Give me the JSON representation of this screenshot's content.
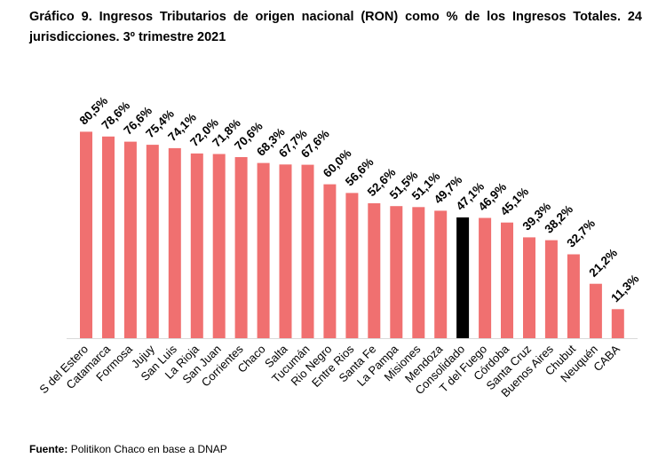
{
  "header": {
    "title": "Gráfico 9. Ingresos Tributarios de origen nacional (RON) como % de los Ingresos Totales. 24 jurisdicciones. 3º trimestre 2021"
  },
  "footer": {
    "source_label": "Fuente:",
    "source_text": "Politikon Chaco en base a DNAP"
  },
  "colors": {
    "bar": "#f07070",
    "highlight": "#000000",
    "axis": "#d9d9d9"
  },
  "chart_data": {
    "type": "bar",
    "title": "Gráfico 9. Ingresos Tributarios de origen nacional (RON) como % de los Ingresos Totales. 24 jurisdicciones. 3º trimestre 2021",
    "categories": [
      "S del Estero",
      "Catamarca",
      "Formosa",
      "Jujuy",
      "San Luis",
      "La Rioja",
      "San Juan",
      "Corrientes",
      "Chaco",
      "Salta",
      "Tucumán",
      "Rio Negro",
      "Entre Rios",
      "Santa Fe",
      "La Pampa",
      "Misiones",
      "Mendoza",
      "Consolidado",
      "T del Fuego",
      "Córdoba",
      "Santa Cruz",
      "Buenos Aires",
      "Chubut",
      "Neuquén",
      "CABA"
    ],
    "values": [
      80.5,
      78.6,
      76.6,
      75.4,
      74.1,
      72.0,
      71.8,
      70.6,
      68.3,
      67.7,
      67.6,
      60.0,
      56.6,
      52.6,
      51.5,
      51.1,
      49.7,
      47.1,
      46.9,
      45.1,
      39.3,
      38.2,
      32.7,
      21.2,
      11.3
    ],
    "labels": [
      "80,5%",
      "78,6%",
      "76,6%",
      "75,4%",
      "74,1%",
      "72,0%",
      "71,8%",
      "70,6%",
      "68,3%",
      "67,7%",
      "67,6%",
      "60,0%",
      "56,6%",
      "52,6%",
      "51,5%",
      "51,1%",
      "49,7%",
      "47,1%",
      "46,9%",
      "45,1%",
      "39,3%",
      "38,2%",
      "32,7%",
      "21,2%",
      "11,3%"
    ],
    "highlight_category": "Consolidado",
    "xlabel": "",
    "ylabel": "",
    "ylim": [
      0,
      100
    ],
    "grid": false,
    "legend": "none"
  }
}
